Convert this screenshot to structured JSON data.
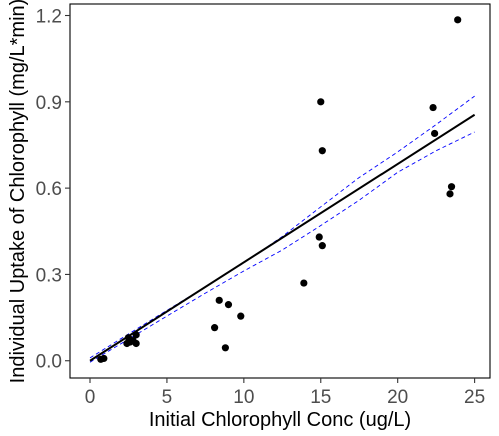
{
  "chart_data": {
    "type": "scatter",
    "xlabel": "Initial Chlorophyll Conc (ug/L)",
    "ylabel": "Individual Uptake of Chlorophyll (mg/L*min)",
    "xlim": [
      -1.3,
      26.0
    ],
    "ylim": [
      -0.06,
      1.24
    ],
    "x_ticks": [
      0,
      5,
      10,
      15,
      20,
      25
    ],
    "y_ticks": [
      0.0,
      0.3,
      0.6,
      0.9,
      1.2
    ],
    "x_tick_labels": [
      "0",
      "5",
      "10",
      "15",
      "20",
      "25"
    ],
    "y_tick_labels": [
      "0.0",
      "0.3",
      "0.6",
      "0.9",
      "1.2"
    ],
    "grid": false,
    "points": [
      {
        "x": 0.7,
        "y": 0.005
      },
      {
        "x": 0.9,
        "y": 0.008
      },
      {
        "x": 2.4,
        "y": 0.06
      },
      {
        "x": 2.5,
        "y": 0.08
      },
      {
        "x": 2.6,
        "y": 0.065
      },
      {
        "x": 2.8,
        "y": 0.07
      },
      {
        "x": 3.0,
        "y": 0.06
      },
      {
        "x": 3.0,
        "y": 0.09
      },
      {
        "x": 8.1,
        "y": 0.115
      },
      {
        "x": 8.4,
        "y": 0.21
      },
      {
        "x": 8.8,
        "y": 0.045
      },
      {
        "x": 9.0,
        "y": 0.195
      },
      {
        "x": 9.8,
        "y": 0.155
      },
      {
        "x": 13.9,
        "y": 0.27
      },
      {
        "x": 14.9,
        "y": 0.43
      },
      {
        "x": 15.0,
        "y": 0.9
      },
      {
        "x": 15.1,
        "y": 0.73
      },
      {
        "x": 15.1,
        "y": 0.4
      },
      {
        "x": 22.3,
        "y": 0.88
      },
      {
        "x": 22.4,
        "y": 0.79
      },
      {
        "x": 23.4,
        "y": 0.58
      },
      {
        "x": 23.5,
        "y": 0.605
      },
      {
        "x": 23.9,
        "y": 1.185
      }
    ],
    "fit_line": {
      "x": [
        0,
        25
      ],
      "y": [
        0.0,
        0.855
      ]
    },
    "ci_upper": {
      "x": [
        0,
        2.5,
        5,
        7.5,
        10,
        12.5,
        15,
        17.5,
        20,
        22.5,
        25
      ],
      "y": [
        0.01,
        0.093,
        0.175,
        0.257,
        0.34,
        0.432,
        0.535,
        0.637,
        0.726,
        0.821,
        0.92
      ]
    },
    "ci_lower": {
      "x": [
        0,
        2.5,
        5,
        7.5,
        10,
        12.5,
        15,
        17.5,
        20,
        22.5,
        25
      ],
      "y": [
        -0.005,
        0.075,
        0.155,
        0.235,
        0.312,
        0.385,
        0.47,
        0.558,
        0.655,
        0.73,
        0.795
      ]
    },
    "colors": {
      "points": "#000000",
      "fit_line": "#000000",
      "ci_lines": "#0000ff",
      "tick_text": "#4d4d4d",
      "axis_title": "#000000"
    }
  }
}
